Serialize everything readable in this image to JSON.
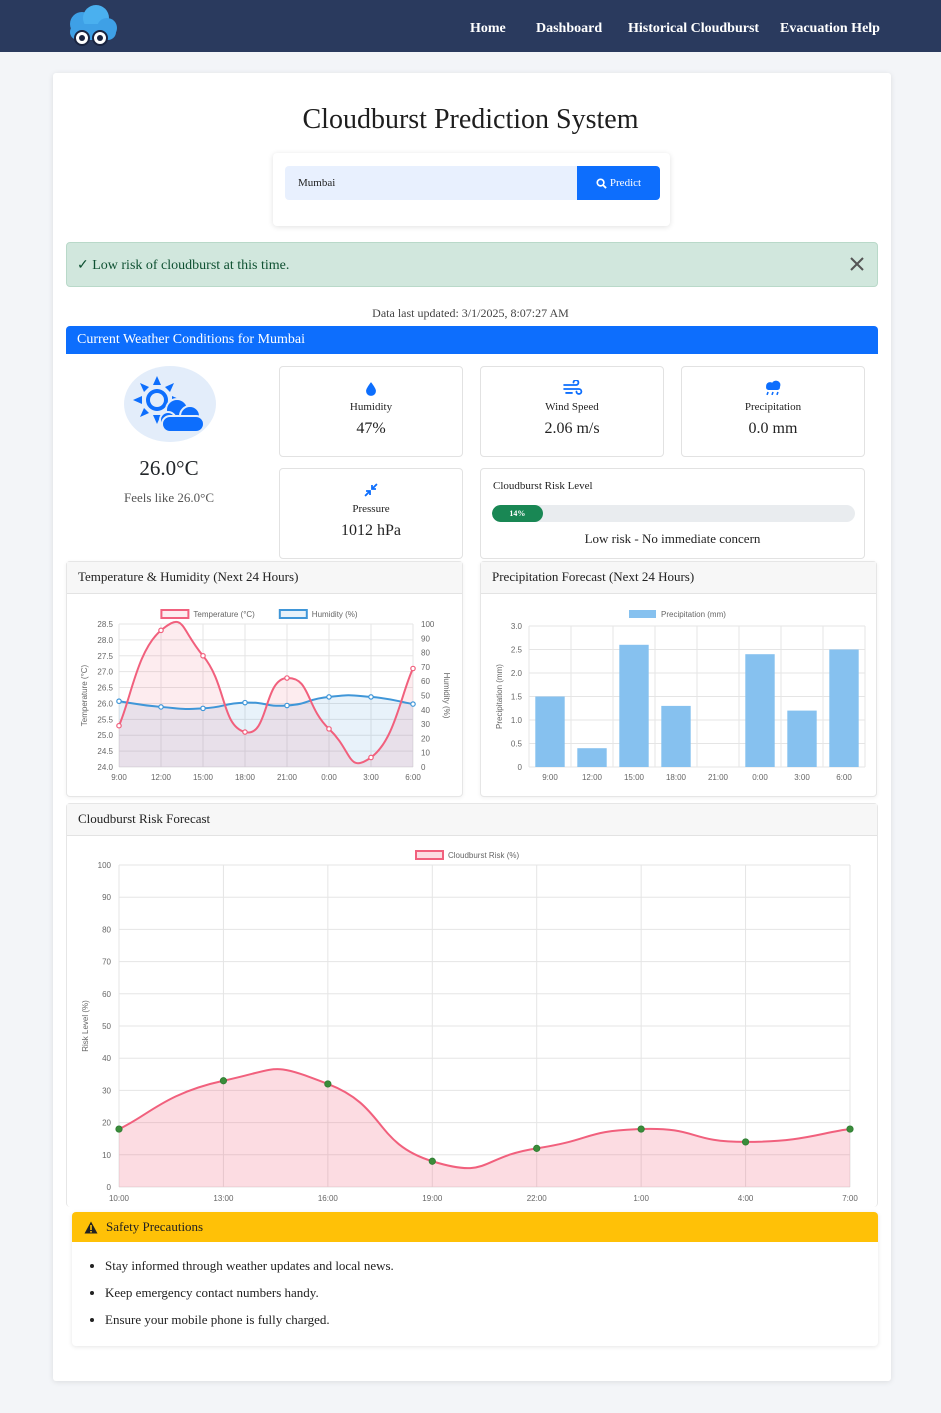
{
  "nav": {
    "links": [
      "Home",
      "Dashboard",
      "Historical Cloudburst",
      "Evacuation Help"
    ]
  },
  "page": {
    "title": "Cloudburst Prediction System"
  },
  "search": {
    "value": "Mumbai",
    "predict_label": "Predict"
  },
  "alert": {
    "message": "✓ Low risk of cloudburst at this time."
  },
  "updated": "Data last updated: 3/1/2025, 8:07:27 AM",
  "weather": {
    "header": "Current Weather Conditions for Mumbai",
    "temp": "26.0°C",
    "feels": "Feels like 26.0°C",
    "humidity_label": "Humidity",
    "humidity_value": "47%",
    "wind_label": "Wind Speed",
    "wind_value": "2.06 m/s",
    "precip_label": "Precipitation",
    "precip_value": "0.0 mm",
    "pressure_label": "Pressure",
    "pressure_value": "1012 hPa",
    "risk_label": "Cloudburst Risk Level",
    "risk_text": "14%",
    "risk_percent": 14,
    "risk_desc": "Low risk - No immediate concern"
  },
  "colors": {
    "primary": "#0d6efd",
    "nav": "#2a3a5e",
    "success": "#198754",
    "warning": "#ffc107",
    "temp_line": "#f1607d",
    "humidity_line": "#3f96d8",
    "precip_bar": "#86c1ef"
  },
  "chart_data": [
    {
      "type": "line",
      "title": "Temperature & Humidity (Next 24 Hours)",
      "x": [
        "9:00",
        "12:00",
        "15:00",
        "18:00",
        "21:00",
        "0:00",
        "3:00",
        "6:00"
      ],
      "series": [
        {
          "name": "Temperature (°C)",
          "axis": "left",
          "values": [
            25.3,
            28.3,
            27.5,
            25.1,
            26.8,
            25.2,
            24.3,
            27.1
          ]
        },
        {
          "name": "Humidity (%)",
          "axis": "right",
          "values": [
            46,
            42,
            41,
            45,
            43,
            49,
            49,
            44
          ]
        }
      ],
      "ylabel": "Temperature (°C)",
      "y2label": "Humidity (%)",
      "ylim": [
        24.0,
        28.5
      ],
      "yticks": [
        "28.5",
        "28.0",
        "27.5",
        "27.0",
        "26.5",
        "26.0",
        "25.5",
        "25.0",
        "24.5",
        "24.0"
      ],
      "y2lim": [
        0,
        100
      ],
      "y2ticks": [
        "100",
        "90",
        "80",
        "70",
        "60",
        "50",
        "40",
        "30",
        "20",
        "10",
        "0"
      ],
      "grid": true,
      "legend": "top"
    },
    {
      "type": "bar",
      "title": "Precipitation Forecast (Next 24 Hours)",
      "categories": [
        "9:00",
        "12:00",
        "15:00",
        "18:00",
        "21:00",
        "0:00",
        "3:00",
        "6:00"
      ],
      "series": [
        {
          "name": "Precipitation (mm)",
          "values": [
            1.5,
            0.4,
            2.6,
            1.3,
            0.0,
            2.4,
            1.2,
            2.5
          ]
        }
      ],
      "ylabel": "Precipitation (mm)",
      "ylim": [
        0,
        3.0
      ],
      "yticks": [
        "3.0",
        "2.5",
        "2.0",
        "1.5",
        "1.0",
        "0.5",
        "0"
      ],
      "grid": true,
      "legend": "top"
    },
    {
      "type": "area",
      "title": "Cloudburst Risk Forecast",
      "x": [
        "10:00",
        "13:00",
        "16:00",
        "19:00",
        "22:00",
        "1:00",
        "4:00",
        "7:00"
      ],
      "series": [
        {
          "name": "Cloudburst Risk (%)",
          "values": [
            18,
            33,
            32,
            8,
            12,
            18,
            14,
            18
          ]
        }
      ],
      "ylabel": "Risk Level (%)",
      "ylim": [
        0,
        100
      ],
      "yticks": [
        "100",
        "90",
        "80",
        "70",
        "60",
        "50",
        "40",
        "30",
        "20",
        "10",
        "0"
      ],
      "grid": true,
      "legend": "top"
    }
  ],
  "safety": {
    "header": "Safety Precautions",
    "items": [
      "Stay informed through weather updates and local news.",
      "Keep emergency contact numbers handy.",
      "Ensure your mobile phone is fully charged."
    ]
  }
}
